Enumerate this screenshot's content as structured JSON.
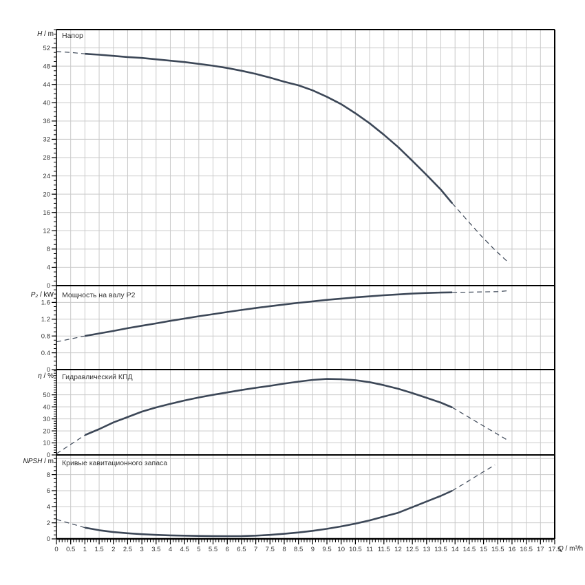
{
  "page": {
    "background": "#ffffff",
    "curve_color": "#3c4757",
    "grid_color": "#c9c9c9",
    "axis_color": "#000000",
    "label_color": "#333333"
  },
  "x_axis": {
    "label_sym": "Q",
    "label_unit": " / m³/h",
    "min": 0,
    "max": 17.5,
    "tick_step": 0.5,
    "minor_step": 0.1,
    "tick_labels": [
      "0",
      "0.5",
      "1",
      "1.5",
      "2",
      "2.5",
      "3",
      "3.5",
      "4",
      "4.5",
      "5",
      "5.5",
      "6",
      "6.5",
      "7",
      "7.5",
      "8",
      "8.5",
      "9",
      "9.5",
      "10",
      "10.5",
      "11",
      "11.5",
      "12",
      "12.5",
      "13",
      "13.5",
      "14",
      "14.5",
      "15",
      "15.5",
      "16",
      "16.5",
      "17",
      "17.5"
    ]
  },
  "chart_data": [
    {
      "type": "line",
      "title": "Напор",
      "ylabel": {
        "sym": "H",
        "unit": " / m"
      },
      "xlabel": "Q / m³/h",
      "y_axis": {
        "min": 0,
        "max": 56,
        "label_step": 4,
        "minor_step": 1,
        "grid_step": 4,
        "grid_max": 52,
        "tick_labels": [
          "0",
          "4",
          "8",
          "12",
          "16",
          "20",
          "24",
          "28",
          "32",
          "36",
          "40",
          "44",
          "48",
          "52"
        ]
      },
      "series": [
        {
          "name": "head-lead-dashed",
          "style": "dashed",
          "points": [
            [
              0,
              51.2
            ],
            [
              0.5,
              51.0
            ],
            [
              1,
              50.7
            ]
          ]
        },
        {
          "name": "head-main",
          "style": "solid",
          "points": [
            [
              1,
              50.7
            ],
            [
              1.5,
              50.5
            ],
            [
              2,
              50.25
            ],
            [
              2.5,
              50.0
            ],
            [
              3,
              49.8
            ],
            [
              3.5,
              49.5
            ],
            [
              4,
              49.2
            ],
            [
              4.5,
              48.9
            ],
            [
              5,
              48.5
            ],
            [
              5.5,
              48.1
            ],
            [
              6,
              47.6
            ],
            [
              6.5,
              47.0
            ],
            [
              7,
              46.3
            ],
            [
              7.5,
              45.5
            ],
            [
              8,
              44.6
            ],
            [
              8.5,
              43.8
            ],
            [
              9,
              42.7
            ],
            [
              9.5,
              41.3
            ],
            [
              10,
              39.7
            ],
            [
              10.5,
              37.7
            ],
            [
              11,
              35.5
            ],
            [
              11.5,
              33.0
            ],
            [
              12,
              30.3
            ],
            [
              12.5,
              27.3
            ],
            [
              13,
              24.2
            ],
            [
              13.5,
              21.0
            ],
            [
              13.9,
              18.0
            ]
          ]
        },
        {
          "name": "head-tail-dashed",
          "style": "dashed",
          "points": [
            [
              13.9,
              18.0
            ],
            [
              14.4,
              14.5
            ],
            [
              14.9,
              11.0
            ],
            [
              15.4,
              7.8
            ],
            [
              15.9,
              4.9
            ]
          ]
        }
      ]
    },
    {
      "type": "line",
      "title": "Мощность на валу P2",
      "ylabel": {
        "sym": "P₂",
        "unit": " / kW"
      },
      "y_axis": {
        "min": 0,
        "max": 2.0,
        "label_step": 0.4,
        "minor_step": 0.1,
        "grid_step": 0.4,
        "grid_max": 1.6,
        "tick_labels": [
          "0",
          "0.4",
          "0.8",
          "1.2",
          "1.6"
        ]
      },
      "series": [
        {
          "name": "power-lead-dashed",
          "style": "dashed",
          "points": [
            [
              0,
              0.66
            ],
            [
              1,
              0.8
            ]
          ]
        },
        {
          "name": "power-main",
          "style": "solid",
          "points": [
            [
              1,
              0.8
            ],
            [
              1.5,
              0.86
            ],
            [
              2,
              0.92
            ],
            [
              2.5,
              0.985
            ],
            [
              3,
              1.045
            ],
            [
              3.5,
              1.1
            ],
            [
              4,
              1.16
            ],
            [
              4.5,
              1.215
            ],
            [
              5,
              1.27
            ],
            [
              5.5,
              1.32
            ],
            [
              6,
              1.37
            ],
            [
              6.5,
              1.42
            ],
            [
              7,
              1.465
            ],
            [
              7.5,
              1.51
            ],
            [
              8,
              1.55
            ],
            [
              8.5,
              1.59
            ],
            [
              9,
              1.625
            ],
            [
              9.5,
              1.66
            ],
            [
              10,
              1.69
            ],
            [
              10.5,
              1.72
            ],
            [
              11,
              1.745
            ],
            [
              11.5,
              1.77
            ],
            [
              12,
              1.79
            ],
            [
              12.5,
              1.81
            ],
            [
              13,
              1.825
            ],
            [
              13.5,
              1.835
            ],
            [
              13.9,
              1.84
            ]
          ]
        },
        {
          "name": "power-tail-dashed",
          "style": "dashed",
          "points": [
            [
              13.9,
              1.84
            ],
            [
              14.5,
              1.845
            ],
            [
              15,
              1.85
            ],
            [
              15.5,
              1.855
            ],
            [
              15.9,
              1.88
            ]
          ]
        }
      ]
    },
    {
      "type": "line",
      "title": "Гидравлический КПД",
      "ylabel": {
        "sym": "η",
        "unit": " / %"
      },
      "y_axis": {
        "min": 0,
        "max": 71,
        "label_step": 10,
        "minor_step": 2,
        "grid_step": 10,
        "grid_max": 60,
        "tick_labels": [
          "0",
          "10",
          "20",
          "30",
          "40",
          "50"
        ]
      },
      "series": [
        {
          "name": "eff-lead-dashed",
          "style": "dashed",
          "points": [
            [
              0,
              1.0
            ],
            [
              1,
              16.5
            ]
          ]
        },
        {
          "name": "eff-main",
          "style": "solid",
          "points": [
            [
              1,
              16.5
            ],
            [
              1.5,
              21.5
            ],
            [
              2,
              27.0
            ],
            [
              2.5,
              31.5
            ],
            [
              3,
              36.0
            ],
            [
              3.5,
              39.5
            ],
            [
              4,
              42.5
            ],
            [
              4.5,
              45.3
            ],
            [
              5,
              47.8
            ],
            [
              5.5,
              50.0
            ],
            [
              6,
              52.0
            ],
            [
              6.5,
              54.0
            ],
            [
              7,
              55.8
            ],
            [
              7.5,
              57.5
            ],
            [
              8,
              59.3
            ],
            [
              8.5,
              61.0
            ],
            [
              9,
              62.4
            ],
            [
              9.5,
              63.2
            ],
            [
              10,
              63.0
            ],
            [
              10.5,
              62.2
            ],
            [
              11,
              60.5
            ],
            [
              11.5,
              58.0
            ],
            [
              12,
              55.0
            ],
            [
              12.5,
              51.5
            ],
            [
              13,
              47.5
            ],
            [
              13.5,
              43.5
            ],
            [
              13.9,
              39.5
            ]
          ]
        },
        {
          "name": "eff-tail-dashed",
          "style": "dashed",
          "points": [
            [
              13.9,
              39.5
            ],
            [
              14.4,
              32.5
            ],
            [
              14.9,
              25.5
            ],
            [
              15.4,
              18.5
            ],
            [
              15.9,
              11.5
            ]
          ]
        }
      ]
    },
    {
      "type": "line",
      "title": "Кривые кавитационного запаса",
      "ylabel": {
        "sym": "NPSH",
        "unit": " / m"
      },
      "y_axis": {
        "min": 0,
        "max": 10.45,
        "label_step": 2,
        "minor_step": 0.5,
        "grid_step": 2,
        "grid_max": 10,
        "tick_labels": [
          "0",
          "2",
          "4",
          "6",
          "8"
        ]
      },
      "series": [
        {
          "name": "npsh-lead-dashed",
          "style": "dashed",
          "points": [
            [
              0,
              2.42
            ],
            [
              1,
              1.4
            ]
          ]
        },
        {
          "name": "npsh-main",
          "style": "solid",
          "points": [
            [
              1,
              1.4
            ],
            [
              1.5,
              1.08
            ],
            [
              2,
              0.85
            ],
            [
              2.5,
              0.7
            ],
            [
              3,
              0.58
            ],
            [
              3.5,
              0.5
            ],
            [
              4,
              0.44
            ],
            [
              4.5,
              0.4
            ],
            [
              5,
              0.37
            ],
            [
              5.5,
              0.35
            ],
            [
              6,
              0.34
            ],
            [
              6.5,
              0.35
            ],
            [
              7,
              0.4
            ],
            [
              7.5,
              0.5
            ],
            [
              8,
              0.63
            ],
            [
              8.5,
              0.8
            ],
            [
              9,
              1.0
            ],
            [
              9.5,
              1.25
            ],
            [
              10,
              1.55
            ],
            [
              10.5,
              1.9
            ],
            [
              11,
              2.3
            ],
            [
              11.5,
              2.78
            ],
            [
              12,
              3.25
            ],
            [
              12.5,
              3.95
            ],
            [
              13,
              4.65
            ],
            [
              13.5,
              5.35
            ],
            [
              13.9,
              6.0
            ]
          ]
        },
        {
          "name": "npsh-tail-dashed",
          "style": "dashed",
          "points": [
            [
              13.9,
              6.0
            ],
            [
              14.4,
              7.05
            ],
            [
              14.9,
              8.15
            ],
            [
              15.4,
              9.2
            ]
          ]
        }
      ]
    }
  ]
}
